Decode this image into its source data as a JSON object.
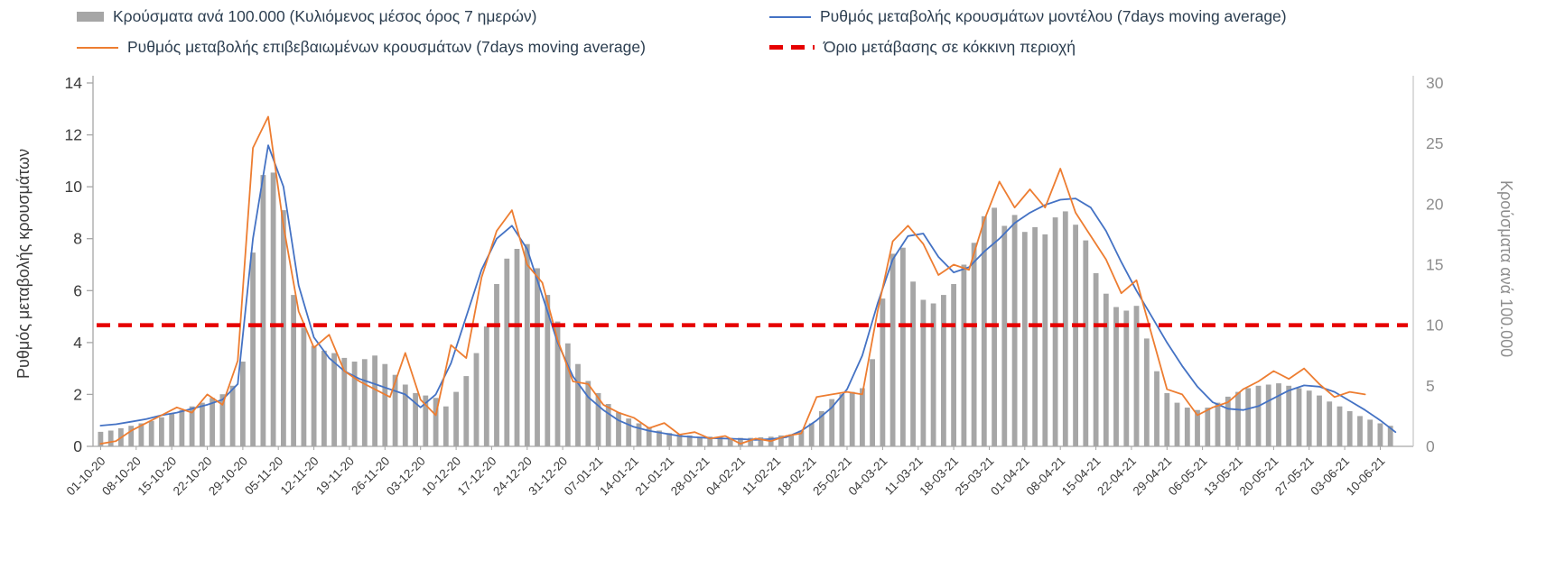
{
  "legend": {
    "items": [
      {
        "label": "Κρούσματα ανά 100.000 (Κυλιόμενος μέσος όρος 7 ημερών)",
        "swatch": "gray-bar"
      },
      {
        "label": "Ρυθμός μεταβολής κρουσμάτων μοντέλου (7days moving average)",
        "swatch": "blue-line"
      },
      {
        "label": "Ρυθμός μεταβολής επιβεβαιωμένων κρουσμάτων (7days moving average)",
        "swatch": "orange-line"
      },
      {
        "label": "Όριο μετάβασης σε κόκκινη περιοχή",
        "swatch": "red-dashed-line"
      }
    ]
  },
  "chart_data": {
    "type": "bar",
    "subtype": "combo-bar-line-dual-axis",
    "title": "",
    "grid": "off",
    "legend_position": "top",
    "x_axis": {
      "start_date": "01-10-20",
      "end_date": "10-06-21",
      "tick_interval_days": 7,
      "tick_labels": [
        "01-10-20",
        "08-10-20",
        "15-10-20",
        "22-10-20",
        "29-10-20",
        "05-11-20",
        "12-11-20",
        "19-11-20",
        "26-11-20",
        "03-12-20",
        "10-12-20",
        "17-12-20",
        "24-12-20",
        "31-12-20",
        "07-01-21",
        "14-01-21",
        "21-01-21",
        "28-01-21",
        "04-02-21",
        "11-02-21",
        "18-02-21",
        "25-02-21",
        "04-03-21",
        "11-03-21",
        "18-03-21",
        "25-03-21",
        "01-04-21",
        "08-04-21",
        "15-04-21",
        "22-04-21",
        "29-04-21",
        "06-05-21",
        "13-05-21",
        "20-05-21",
        "27-05-21",
        "03-06-21",
        "10-06-21"
      ]
    },
    "y_left": {
      "label": "Ρυθμός μεταβολής κρουσμάτων",
      "min": 0,
      "max": 14,
      "ticks": [
        0,
        2,
        4,
        6,
        8,
        10,
        12,
        14
      ]
    },
    "y_right": {
      "label": "Κρούσματα ανά 100.000",
      "min": 0,
      "max": 30,
      "ticks": [
        0,
        5,
        10,
        15,
        20,
        25,
        30
      ]
    },
    "series": [
      {
        "name": "Κρούσματα ανά 100.000 (Κυλιόμενος μέσος όρος 7 ημερών)",
        "type": "bar",
        "axis": "right",
        "color": "#a6a6a6",
        "step_days": 2,
        "values": [
          1.2,
          1.3,
          1.5,
          1.7,
          1.9,
          2.1,
          2.4,
          2.7,
          3.0,
          3.3,
          3.6,
          4.0,
          4.3,
          5.0,
          7.0,
          16.0,
          22.4,
          22.6,
          19.5,
          12.5,
          9.8,
          8.3,
          7.9,
          7.7,
          7.3,
          7.0,
          7.2,
          7.5,
          6.8,
          5.9,
          5.1,
          4.4,
          4.2,
          4.0,
          3.3,
          4.5,
          5.8,
          7.7,
          9.9,
          13.4,
          15.5,
          16.3,
          16.7,
          14.7,
          12.5,
          10.3,
          8.5,
          6.8,
          5.4,
          4.4,
          3.5,
          2.8,
          2.3,
          1.9,
          1.6,
          1.3,
          1.1,
          1.0,
          0.9,
          0.8,
          0.8,
          0.75,
          0.7,
          0.7,
          0.7,
          0.75,
          0.8,
          0.9,
          1.0,
          1.3,
          1.9,
          2.9,
          3.9,
          4.3,
          4.5,
          4.8,
          7.2,
          12.2,
          15.9,
          16.4,
          13.6,
          12.1,
          11.8,
          12.5,
          13.4,
          15.0,
          16.8,
          19.0,
          19.7,
          18.2,
          19.1,
          17.7,
          18.1,
          17.5,
          18.9,
          19.4,
          18.3,
          17.0,
          14.3,
          12.6,
          11.5,
          11.2,
          11.6,
          8.9,
          6.2,
          4.4,
          3.6,
          3.2,
          3.0,
          3.2,
          3.6,
          4.1,
          4.5,
          4.8,
          5.0,
          5.1,
          5.2,
          5.0,
          4.8,
          4.6,
          4.2,
          3.7,
          3.3,
          2.9,
          2.5,
          2.2,
          1.9,
          1.7
        ]
      },
      {
        "name": "Ρυθμός μεταβολής κρουσμάτων μοντέλου (7days moving average)",
        "type": "line",
        "axis": "left",
        "color": "#4472c4",
        "step_days": 3,
        "values": [
          0.8,
          0.85,
          0.95,
          1.05,
          1.2,
          1.3,
          1.45,
          1.6,
          1.8,
          2.4,
          8.0,
          11.6,
          10.0,
          6.2,
          4.2,
          3.4,
          2.9,
          2.6,
          2.4,
          2.2,
          2.0,
          1.5,
          2.0,
          3.2,
          5.0,
          6.8,
          8.0,
          8.5,
          7.6,
          5.8,
          4.0,
          2.7,
          1.9,
          1.4,
          1.0,
          0.75,
          0.6,
          0.5,
          0.4,
          0.35,
          0.32,
          0.3,
          0.28,
          0.25,
          0.28,
          0.35,
          0.6,
          1.0,
          1.5,
          2.2,
          3.5,
          5.5,
          7.2,
          8.1,
          8.2,
          7.3,
          6.7,
          6.9,
          7.5,
          8.0,
          8.6,
          9.0,
          9.3,
          9.5,
          9.55,
          9.2,
          8.3,
          7.1,
          6.0,
          5.0,
          4.0,
          3.1,
          2.3,
          1.7,
          1.45,
          1.4,
          1.55,
          1.85,
          2.15,
          2.35,
          2.3,
          2.1,
          1.75,
          1.4,
          1.0,
          0.55
        ]
      },
      {
        "name": "Ρυθμός μεταβολής επιβεβαιωμένων κρουσμάτων (7days moving average)",
        "type": "line",
        "axis": "left",
        "color": "#ed7d31",
        "step_days": 3,
        "values": [
          0.1,
          0.2,
          0.6,
          0.9,
          1.2,
          1.5,
          1.3,
          2.0,
          1.6,
          3.3,
          11.5,
          12.7,
          8.5,
          5.2,
          3.8,
          4.3,
          2.9,
          2.5,
          2.2,
          1.9,
          3.6,
          1.8,
          1.2,
          3.9,
          3.4,
          6.5,
          8.3,
          9.1,
          7.0,
          6.3,
          4.1,
          2.5,
          2.4,
          1.6,
          1.3,
          1.1,
          0.7,
          0.9,
          0.45,
          0.55,
          0.3,
          0.4,
          0.1,
          0.3,
          0.2,
          0.4,
          0.5,
          1.9,
          2.0,
          2.1,
          2.0,
          5.2,
          7.9,
          8.5,
          7.8,
          6.6,
          7.0,
          6.8,
          8.7,
          10.2,
          9.2,
          9.9,
          9.2,
          10.7,
          9.0,
          8.1,
          7.2,
          5.9,
          6.4,
          4.3,
          2.2,
          2.0,
          1.2,
          1.5,
          1.7,
          2.2,
          2.5,
          2.9,
          2.6,
          3.0,
          2.4,
          1.9,
          2.1,
          2.0
        ]
      },
      {
        "name": "Όριο μετάβασης σε κόκκινη περιοχή",
        "type": "threshold",
        "axis": "left",
        "color": "#e60000",
        "value": 4.67,
        "value_right_axis": 10
      }
    ]
  }
}
